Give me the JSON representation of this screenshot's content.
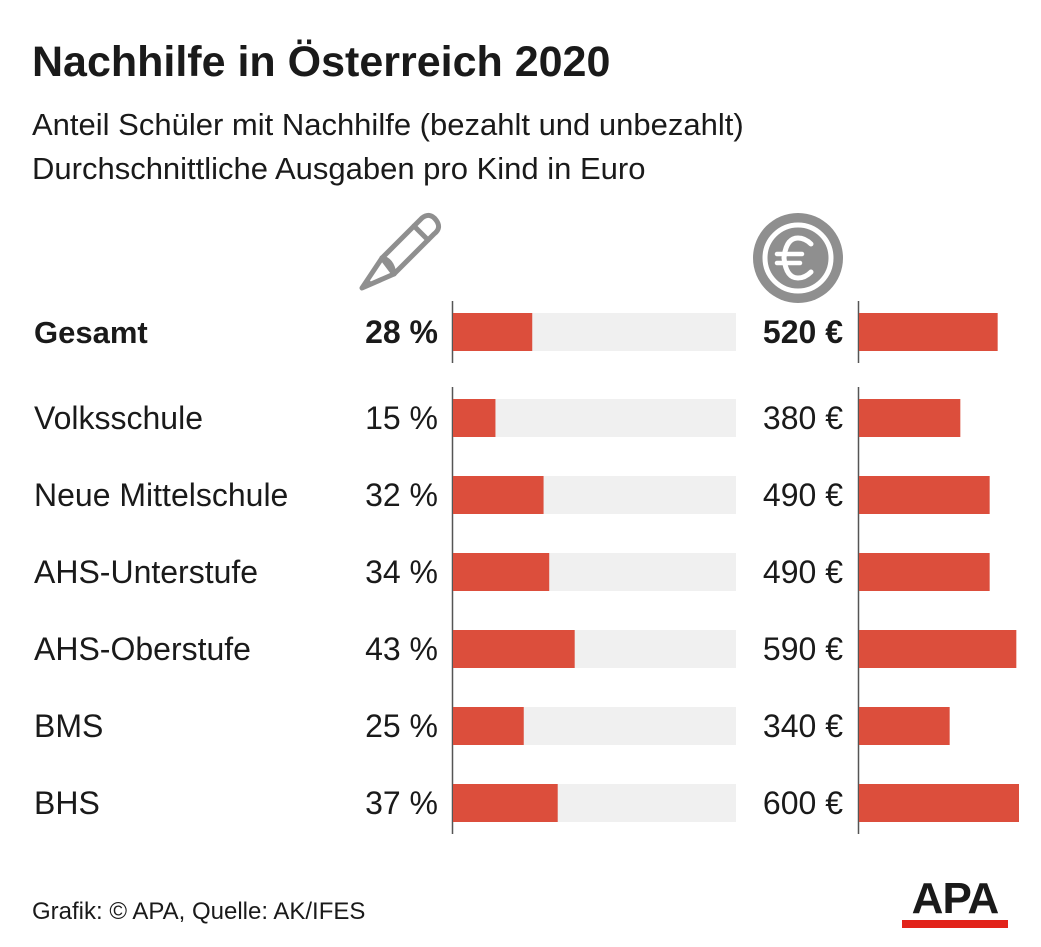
{
  "title": "Nachhilfe in Österreich 2020",
  "subtitle_line1": "Anteil Schüler mit Nachhilfe (bezahlt und unbezahlt)",
  "subtitle_line2": "Durchschnittliche Ausgaben pro Kind in Euro",
  "icons": {
    "share_column": "pencil-icon",
    "spending_column": "euro-coin-icon"
  },
  "colors": {
    "bar": "#dc4e3c",
    "track": "#f0f0f0",
    "axis": "#555555",
    "icon": "#8f8f8f",
    "logo_accent": "#e2231a"
  },
  "footer": "Grafik: © APA, Quelle: AK/IFES",
  "logo": "APA",
  "chart_data": {
    "type": "bar",
    "categories": [
      "Gesamt",
      "Volksschule",
      "Neue Mittelschule",
      "AHS-Unterstufe",
      "AHS-Oberstufe",
      "BMS",
      "BHS"
    ],
    "highlight_category": "Gesamt",
    "series": [
      {
        "values": [
          28,
          15,
          32,
          34,
          43,
          25,
          37
        ],
        "labels": [
          "28 %",
          "15 %",
          "32 %",
          "34 %",
          "43 %",
          "25 %",
          "37 %"
        ],
        "xlim": [
          0,
          100
        ]
      },
      {
        "values": [
          520,
          380,
          490,
          490,
          590,
          340,
          600
        ],
        "labels": [
          "520 €",
          "380 €",
          "490 €",
          "490 €",
          "590 €",
          "340 €",
          "600 €"
        ],
        "xlim": [
          0,
          600
        ]
      }
    ]
  }
}
